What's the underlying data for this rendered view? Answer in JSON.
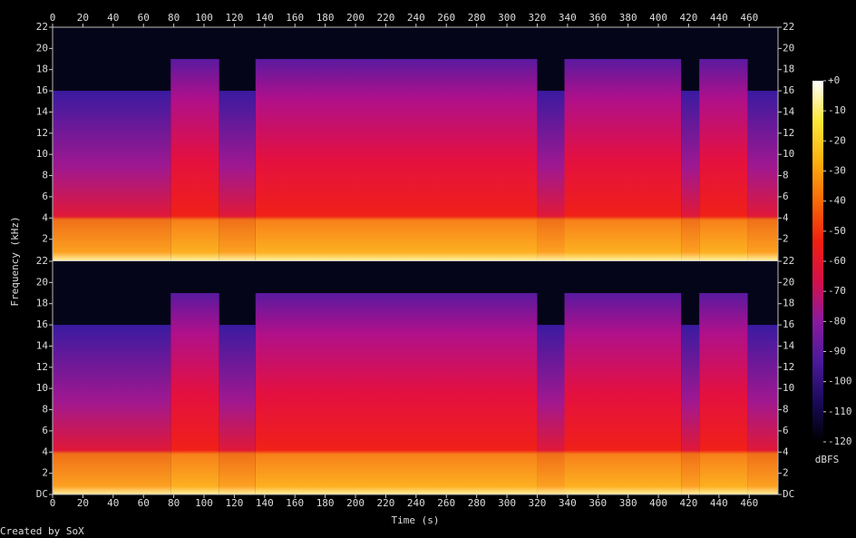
{
  "chart_data": {
    "type": "spectrogram",
    "x_label": "Time (s)",
    "y_label": "Frequency (kHz)",
    "footer": "Created by SoX",
    "xlim": [
      0,
      479
    ],
    "xticks": [
      0,
      20,
      40,
      60,
      80,
      100,
      120,
      140,
      160,
      180,
      200,
      220,
      240,
      260,
      280,
      300,
      320,
      340,
      360,
      380,
      400,
      420,
      440,
      460
    ],
    "ylim": [
      0,
      22
    ],
    "yticks": [
      {
        "value": 0,
        "label": "DC"
      },
      2,
      4,
      6,
      8,
      10,
      12,
      14,
      16,
      18,
      20,
      22
    ],
    "channels": 2,
    "segments": [
      {
        "start": 0,
        "end": 78,
        "cutoff_khz": 16
      },
      {
        "start": 78,
        "end": 110,
        "cutoff_khz": 19
      },
      {
        "start": 110,
        "end": 134,
        "cutoff_khz": 16
      },
      {
        "start": 134,
        "end": 320,
        "cutoff_khz": 19
      },
      {
        "start": 320,
        "end": 338,
        "cutoff_khz": 16
      },
      {
        "start": 338,
        "end": 415,
        "cutoff_khz": 19
      },
      {
        "start": 415,
        "end": 427,
        "cutoff_khz": 16
      },
      {
        "start": 427,
        "end": 459,
        "cutoff_khz": 19
      },
      {
        "start": 459,
        "end": 479,
        "cutoff_khz": 16
      }
    ],
    "colorbar": {
      "label": "dBFS",
      "lim": [
        -120,
        0
      ],
      "ticks": [
        {
          "value": 0,
          "label": "+0"
        },
        -10,
        -20,
        -30,
        -40,
        -50,
        -60,
        -70,
        -80,
        -90,
        -100,
        -110,
        -120
      ],
      "colors": [
        "#000000",
        "#1a0a5a",
        "#4a1a9a",
        "#8a1aa0",
        "#d4104a",
        "#f02010",
        "#f86a08",
        "#fcb010",
        "#fce838",
        "#ffffff"
      ]
    }
  }
}
